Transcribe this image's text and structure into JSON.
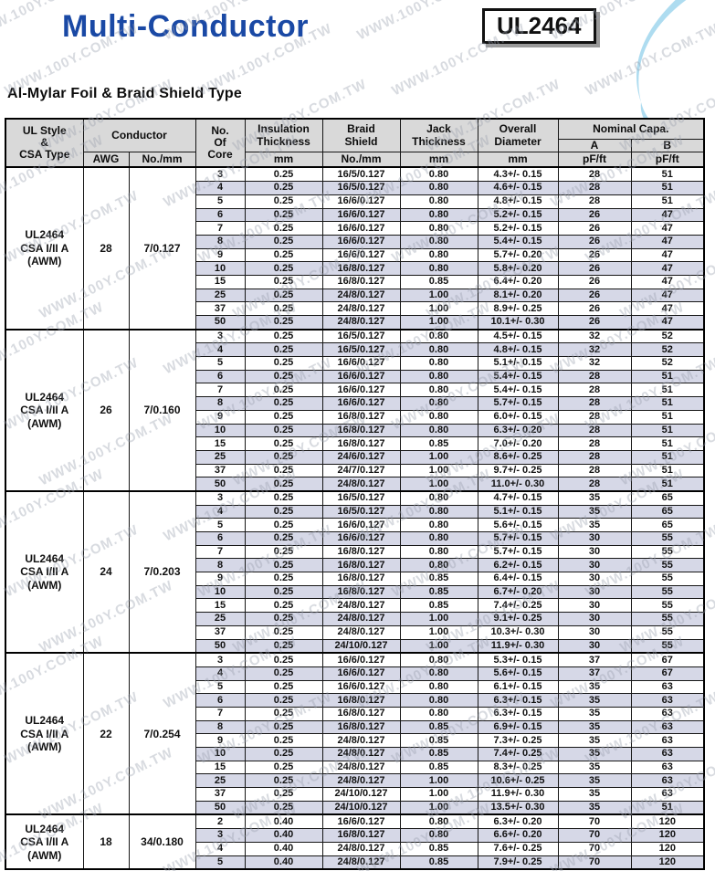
{
  "page": {
    "title": "Multi-Conductor",
    "part_number": "UL2464",
    "section_heading": "Al-Mylar Foil & Braid Shield Type",
    "watermark_text": "WWW.100Y.COM.TW",
    "colors": {
      "title_blue": "#1a49a5",
      "header_gray": "#d9d9d9",
      "alt_row_lavender": "#d6d8e7",
      "curve_light_blue": "#aedcf0"
    }
  },
  "table": {
    "header": {
      "ul_style_lines": [
        "UL Style",
        "&",
        "CSA Type"
      ],
      "conductor": "Conductor",
      "awg": "AWG",
      "no_mm": "No./mm",
      "core_lines": [
        "No.",
        "Of",
        "Core"
      ],
      "insulation_lines": [
        "Insulation",
        "Thickness"
      ],
      "insulation_unit": "mm",
      "braid_lines": [
        "Braid",
        "Shield"
      ],
      "braid_unit": "No./mm",
      "jack_lines": [
        "Jack",
        "Thickness"
      ],
      "jack_unit": "mm",
      "overall_lines": [
        "Overall",
        "Diameter"
      ],
      "overall_unit": "mm",
      "nominal": "Nominal Capa.",
      "nominal_a": "A",
      "nominal_b": "B",
      "nominal_a_unit": "pF/ft",
      "nominal_b_unit": "pF/ft"
    },
    "groups": [
      {
        "ul_style": [
          "UL2464",
          "CSA I/II A",
          "(AWM)"
        ],
        "awg": "28",
        "conductor_mm": "7/0.127",
        "rows": [
          [
            "3",
            "0.25",
            "16/5/0.127",
            "0.80",
            "4.3+/- 0.15",
            "28",
            "51"
          ],
          [
            "4",
            "0.25",
            "16/5/0.127",
            "0.80",
            "4.6+/- 0.15",
            "28",
            "51"
          ],
          [
            "5",
            "0.25",
            "16/6/0.127",
            "0.80",
            "4.8+/- 0.15",
            "28",
            "51"
          ],
          [
            "6",
            "0.25",
            "16/6/0.127",
            "0.80",
            "5.2+/- 0.15",
            "26",
            "47"
          ],
          [
            "7",
            "0.25",
            "16/6/0.127",
            "0.80",
            "5.2+/- 0.15",
            "26",
            "47"
          ],
          [
            "8",
            "0.25",
            "16/6/0.127",
            "0.80",
            "5.4+/- 0.15",
            "26",
            "47"
          ],
          [
            "9",
            "0.25",
            "16/6/0.127",
            "0.80",
            "5.7+/- 0.20",
            "26",
            "47"
          ],
          [
            "10",
            "0.25",
            "16/8/0.127",
            "0.80",
            "5.8+/- 0.20",
            "26",
            "47"
          ],
          [
            "15",
            "0.25",
            "16/8/0.127",
            "0.85",
            "6.4+/- 0.20",
            "26",
            "47"
          ],
          [
            "25",
            "0.25",
            "24/8/0.127",
            "1.00",
            "8.1+/- 0.20",
            "26",
            "47"
          ],
          [
            "37",
            "0.25",
            "24/8/0.127",
            "1.00",
            "8.9+/- 0.25",
            "26",
            "47"
          ],
          [
            "50",
            "0.25",
            "24/8/0.127",
            "1.00",
            "10.1+/- 0.30",
            "26",
            "47"
          ]
        ]
      },
      {
        "ul_style": [
          "UL2464",
          "CSA I/II A",
          "(AWM)"
        ],
        "awg": "26",
        "conductor_mm": "7/0.160",
        "rows": [
          [
            "3",
            "0.25",
            "16/5/0.127",
            "0.80",
            "4.5+/- 0.15",
            "32",
            "52"
          ],
          [
            "4",
            "0.25",
            "16/5/0.127",
            "0.80",
            "4.8+/- 0.15",
            "32",
            "52"
          ],
          [
            "5",
            "0.25",
            "16/6/0.127",
            "0.80",
            "5.1+/- 0.15",
            "32",
            "52"
          ],
          [
            "6",
            "0.25",
            "16/6/0.127",
            "0.80",
            "5.4+/- 0.15",
            "28",
            "51"
          ],
          [
            "7",
            "0.25",
            "16/6/0.127",
            "0.80",
            "5.4+/- 0.15",
            "28",
            "51"
          ],
          [
            "8",
            "0.25",
            "16/6/0.127",
            "0.80",
            "5.7+/- 0.15",
            "28",
            "51"
          ],
          [
            "9",
            "0.25",
            "16/8/0.127",
            "0.80",
            "6.0+/- 0.15",
            "28",
            "51"
          ],
          [
            "10",
            "0.25",
            "16/8/0.127",
            "0.80",
            "6.3+/- 0.20",
            "28",
            "51"
          ],
          [
            "15",
            "0.25",
            "16/8/0.127",
            "0.85",
            "7.0+/- 0.20",
            "28",
            "51"
          ],
          [
            "25",
            "0.25",
            "24/6/0.127",
            "1.00",
            "8.6+/- 0.25",
            "28",
            "51"
          ],
          [
            "37",
            "0.25",
            "24/7/0.127",
            "1.00",
            "9.7+/- 0.25",
            "28",
            "51"
          ],
          [
            "50",
            "0.25",
            "24/8/0.127",
            "1.00",
            "11.0+/- 0.30",
            "28",
            "51"
          ]
        ]
      },
      {
        "ul_style": [
          "UL2464",
          "CSA I/II A",
          "(AWM)"
        ],
        "awg": "24",
        "conductor_mm": "7/0.203",
        "rows": [
          [
            "3",
            "0.25",
            "16/5/0.127",
            "0.80",
            "4.7+/- 0.15",
            "35",
            "65"
          ],
          [
            "4",
            "0.25",
            "16/5/0.127",
            "0.80",
            "5.1+/- 0.15",
            "35",
            "65"
          ],
          [
            "5",
            "0.25",
            "16/6/0.127",
            "0.80",
            "5.6+/- 0.15",
            "35",
            "65"
          ],
          [
            "6",
            "0.25",
            "16/6/0.127",
            "0.80",
            "5.7+/- 0.15",
            "30",
            "55"
          ],
          [
            "7",
            "0.25",
            "16/8/0.127",
            "0.80",
            "5.7+/- 0.15",
            "30",
            "55"
          ],
          [
            "8",
            "0.25",
            "16/8/0.127",
            "0.80",
            "6.2+/- 0.15",
            "30",
            "55"
          ],
          [
            "9",
            "0.25",
            "16/8/0.127",
            "0.85",
            "6.4+/- 0.15",
            "30",
            "55"
          ],
          [
            "10",
            "0.25",
            "16/8/0.127",
            "0.85",
            "6.7+/- 0.20",
            "30",
            "55"
          ],
          [
            "15",
            "0.25",
            "24/8/0.127",
            "0.85",
            "7.4+/- 0.25",
            "30",
            "55"
          ],
          [
            "25",
            "0.25",
            "24/8/0.127",
            "1.00",
            "9.1+/- 0.25",
            "30",
            "55"
          ],
          [
            "37",
            "0.25",
            "24/8/0.127",
            "1.00",
            "10.3+/- 0.30",
            "30",
            "55"
          ],
          [
            "50",
            "0.25",
            "24/10/0.127",
            "1.00",
            "11.9+/- 0.30",
            "30",
            "55"
          ]
        ]
      },
      {
        "ul_style": [
          "UL2464",
          "CSA I/II A",
          "(AWM)"
        ],
        "awg": "22",
        "conductor_mm": "7/0.254",
        "rows": [
          [
            "3",
            "0.25",
            "16/6/0.127",
            "0.80",
            "5.3+/- 0.15",
            "37",
            "67"
          ],
          [
            "4",
            "0.25",
            "16/6/0.127",
            "0.80",
            "5.6+/- 0.15",
            "37",
            "67"
          ],
          [
            "5",
            "0.25",
            "16/6/0.127",
            "0.80",
            "6.1+/- 0.15",
            "35",
            "63"
          ],
          [
            "6",
            "0.25",
            "16/8/0.127",
            "0.80",
            "6.3+/- 0.15",
            "35",
            "63"
          ],
          [
            "7",
            "0.25",
            "16/8/0.127",
            "0.80",
            "6.3+/- 0.15",
            "35",
            "63"
          ],
          [
            "8",
            "0.25",
            "16/8/0.127",
            "0.85",
            "6.9+/- 0.15",
            "35",
            "63"
          ],
          [
            "9",
            "0.25",
            "24/8/0.127",
            "0.85",
            "7.3+/- 0.25",
            "35",
            "63"
          ],
          [
            "10",
            "0.25",
            "24/8/0.127",
            "0.85",
            "7.4+/- 0.25",
            "35",
            "63"
          ],
          [
            "15",
            "0.25",
            "24/8/0.127",
            "0.85",
            "8.3+/- 0.25",
            "35",
            "63"
          ],
          [
            "25",
            "0.25",
            "24/8/0.127",
            "1.00",
            "10.6+/- 0.25",
            "35",
            "63"
          ],
          [
            "37",
            "0.25",
            "24/10/0.127",
            "1.00",
            "11.9+/- 0.30",
            "35",
            "63"
          ],
          [
            "50",
            "0.25",
            "24/10/0.127",
            "1.00",
            "13.5+/- 0.30",
            "35",
            "51"
          ]
        ]
      },
      {
        "ul_style": [
          "UL2464",
          "CSA I/II A",
          "(AWM)"
        ],
        "awg": "18",
        "conductor_mm": "34/0.180",
        "rows": [
          [
            "2",
            "0.40",
            "16/6/0.127",
            "0.80",
            "6.3+/- 0.20",
            "70",
            "120"
          ],
          [
            "3",
            "0.40",
            "16/8/0.127",
            "0.80",
            "6.6+/- 0.20",
            "70",
            "120"
          ],
          [
            "4",
            "0.40",
            "24/8/0.127",
            "0.85",
            "7.6+/- 0.25",
            "70",
            "120"
          ],
          [
            "5",
            "0.40",
            "24/8/0.127",
            "0.85",
            "7.9+/- 0.25",
            "70",
            "120"
          ]
        ]
      }
    ]
  }
}
